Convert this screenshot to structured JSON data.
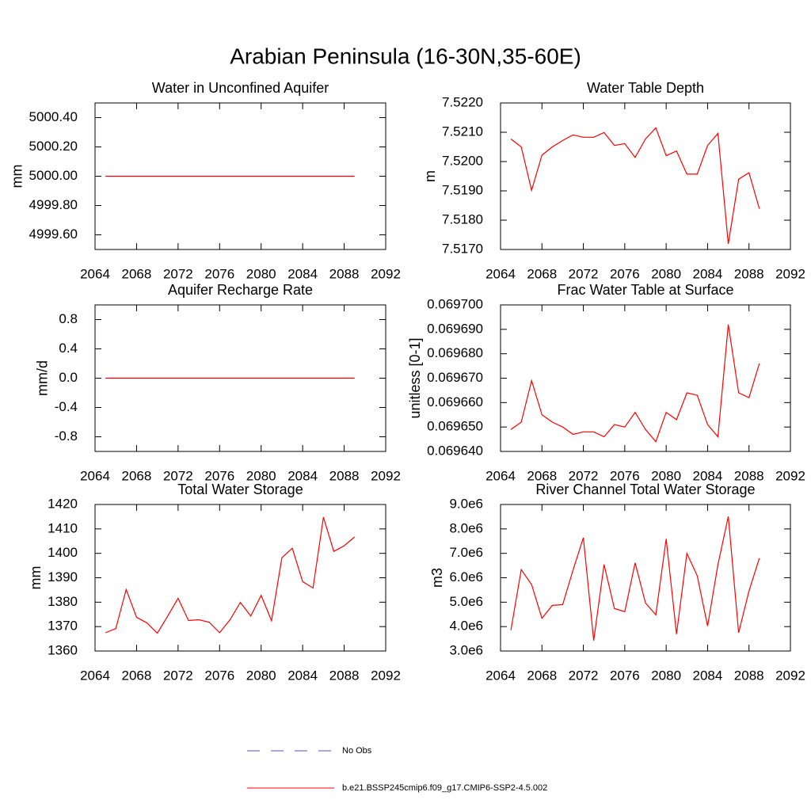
{
  "title": "Arabian Peninsula (16-30N,35-60E)",
  "legend": [
    {
      "name": "No Obs",
      "color": "#5050c8",
      "line_style": "dashed"
    },
    {
      "name": "b.e21.BSSP245cmip6.f09_g17.CMIP6-SSP2-4.5.002",
      "color": "#ff0000",
      "line_style": "solid"
    }
  ],
  "chart_data": [
    {
      "type": "line",
      "title": "Water in Unconfined Aquifer",
      "ylabel": "mm",
      "x": [
        2065,
        2066,
        2067,
        2068,
        2069,
        2070,
        2071,
        2072,
        2073,
        2074,
        2075,
        2076,
        2077,
        2078,
        2079,
        2080,
        2081,
        2082,
        2083,
        2084,
        2085,
        2086,
        2087,
        2088,
        2089
      ],
      "xlim": [
        2064,
        2092
      ],
      "xticks": [
        2064,
        2068,
        2072,
        2076,
        2080,
        2084,
        2088,
        2092
      ],
      "ylim": [
        4999.5,
        5000.5
      ],
      "yticks": [
        {
          "value": 4999.6,
          "label": "4999.60"
        },
        {
          "value": 4999.8,
          "label": "4999.80"
        },
        {
          "value": 5000,
          "label": "5000.00"
        },
        {
          "value": 5000.2,
          "label": "5000.20"
        },
        {
          "value": 5000.4,
          "label": "5000.40"
        }
      ],
      "series": [
        {
          "color": "#ff0000",
          "values": [
            5000,
            5000,
            5000,
            5000,
            5000,
            5000,
            5000,
            5000,
            5000,
            5000,
            5000,
            5000,
            5000,
            5000,
            5000,
            5000,
            5000,
            5000,
            5000,
            5000,
            5000,
            5000,
            5000,
            5000,
            5000
          ]
        }
      ]
    },
    {
      "type": "line",
      "title": "Water Table Depth",
      "ylabel": "m",
      "x": [
        2065,
        2066,
        2067,
        2068,
        2069,
        2070,
        2071,
        2072,
        2073,
        2074,
        2075,
        2076,
        2077,
        2078,
        2079,
        2080,
        2081,
        2082,
        2083,
        2084,
        2085,
        2086,
        2087,
        2088,
        2089
      ],
      "xlim": [
        2064,
        2092
      ],
      "xticks": [
        2064,
        2068,
        2072,
        2076,
        2080,
        2084,
        2088,
        2092
      ],
      "ylim": [
        7.517,
        7.522
      ],
      "yticks": [
        {
          "value": 7.517,
          "label": "7.5170"
        },
        {
          "value": 7.518,
          "label": "7.5180"
        },
        {
          "value": 7.519,
          "label": "7.5190"
        },
        {
          "value": 7.52,
          "label": "7.5200"
        },
        {
          "value": 7.521,
          "label": "7.5210"
        },
        {
          "value": 7.522,
          "label": "7.5220"
        }
      ],
      "series": [
        {
          "color": "#ff0000",
          "values": [
            7.52077,
            7.5205,
            7.51902,
            7.52022,
            7.5205,
            7.52072,
            7.52091,
            7.52083,
            7.52083,
            7.52099,
            7.52055,
            7.52061,
            7.52014,
            7.52077,
            7.52115,
            7.5202,
            7.52036,
            7.51957,
            7.51957,
            7.52055,
            7.52096,
            7.51719,
            7.5194,
            7.51962,
            7.51839
          ]
        }
      ]
    },
    {
      "type": "line",
      "title": "Aquifer Recharge Rate",
      "ylabel": "mm/d",
      "x": [
        2065,
        2066,
        2067,
        2068,
        2069,
        2070,
        2071,
        2072,
        2073,
        2074,
        2075,
        2076,
        2077,
        2078,
        2079,
        2080,
        2081,
        2082,
        2083,
        2084,
        2085,
        2086,
        2087,
        2088,
        2089
      ],
      "xlim": [
        2064,
        2092
      ],
      "xticks": [
        2064,
        2068,
        2072,
        2076,
        2080,
        2084,
        2088,
        2092
      ],
      "ylim": [
        -1,
        1
      ],
      "yticks": [
        -0.8,
        -0.4,
        {
          "value": 0,
          "label": "0.0"
        },
        0.4,
        0.8
      ],
      "series": [
        {
          "color": "#ff0000",
          "values": [
            0,
            0,
            0,
            0,
            0,
            0,
            0,
            0,
            0,
            0,
            0,
            0,
            0,
            0,
            0,
            0,
            0,
            0,
            0,
            0,
            0,
            0,
            0,
            0,
            0
          ]
        }
      ]
    },
    {
      "type": "line",
      "title": "Frac Water Table at Surface",
      "ylabel": "unitless [0-1]",
      "x": [
        2065,
        2066,
        2067,
        2068,
        2069,
        2070,
        2071,
        2072,
        2073,
        2074,
        2075,
        2076,
        2077,
        2078,
        2079,
        2080,
        2081,
        2082,
        2083,
        2084,
        2085,
        2086,
        2087,
        2088,
        2089
      ],
      "xlim": [
        2064,
        2092
      ],
      "xticks": [
        2064,
        2068,
        2072,
        2076,
        2080,
        2084,
        2088,
        2092
      ],
      "ylim": [
        0.06964,
        0.0697
      ],
      "yticks": [
        {
          "value": 0.06964,
          "label": "0.069640"
        },
        {
          "value": 0.06965,
          "label": "0.069650"
        },
        {
          "value": 0.06966,
          "label": "0.069660"
        },
        {
          "value": 0.06967,
          "label": "0.069670"
        },
        {
          "value": 0.06968,
          "label": "0.069680"
        },
        {
          "value": 0.06969,
          "label": "0.069690"
        },
        {
          "value": 0.0697,
          "label": "0.069700"
        }
      ],
      "series": [
        {
          "color": "#ff0000",
          "values": [
            0.069649,
            0.069652,
            0.069669,
            0.069655,
            0.069652,
            0.06965,
            0.069647,
            0.069648,
            0.069648,
            0.069646,
            0.069651,
            0.06965,
            0.069656,
            0.069649,
            0.069644,
            0.069656,
            0.069653,
            0.069664,
            0.069663,
            0.069651,
            0.069646,
            0.069692,
            0.069664,
            0.069662,
            0.069676
          ]
        }
      ]
    },
    {
      "type": "line",
      "title": "Total Water Storage",
      "ylabel": "mm",
      "x": [
        2065,
        2066,
        2067,
        2068,
        2069,
        2070,
        2071,
        2072,
        2073,
        2074,
        2075,
        2076,
        2077,
        2078,
        2079,
        2080,
        2081,
        2082,
        2083,
        2084,
        2085,
        2086,
        2087,
        2088,
        2089
      ],
      "xlim": [
        2064,
        2092
      ],
      "xticks": [
        2064,
        2068,
        2072,
        2076,
        2080,
        2084,
        2088,
        2092
      ],
      "ylim": [
        1360,
        1420
      ],
      "yticks": [
        1360,
        1370,
        1380,
        1390,
        1400,
        1410,
        1420
      ],
      "series": [
        {
          "color": "#ff0000",
          "values": [
            1367.5,
            1369.2,
            1385.2,
            1373.8,
            1371.5,
            1367.3,
            1374.3,
            1381.6,
            1372.5,
            1372.8,
            1371.8,
            1367.5,
            1372.8,
            1379.9,
            1374.3,
            1382.8,
            1372.4,
            1398.2,
            1402.1,
            1388.4,
            1385.8,
            1414.8,
            1400.8,
            1403.1,
            1406.7
          ]
        }
      ]
    },
    {
      "type": "line",
      "title": "River Channel Total Water Storage",
      "ylabel": "m3",
      "x": [
        2065,
        2066,
        2067,
        2068,
        2069,
        2070,
        2071,
        2072,
        2073,
        2074,
        2075,
        2076,
        2077,
        2078,
        2079,
        2080,
        2081,
        2082,
        2083,
        2084,
        2085,
        2086,
        2087,
        2088,
        2089
      ],
      "xlim": [
        2064,
        2092
      ],
      "xticks": [
        2064,
        2068,
        2072,
        2076,
        2080,
        2084,
        2088,
        2092
      ],
      "ylim": [
        3000000,
        9000000
      ],
      "yticks": [
        {
          "value": 3000000,
          "label": "3.0e6"
        },
        {
          "value": 4000000,
          "label": "4.0e6"
        },
        {
          "value": 5000000,
          "label": "5.0e6"
        },
        {
          "value": 6000000,
          "label": "6.0e6"
        },
        {
          "value": 7000000,
          "label": "7.0e6"
        },
        {
          "value": 8000000,
          "label": "8.0e6"
        },
        {
          "value": 9000000,
          "label": "9.0e6"
        }
      ],
      "series": [
        {
          "color": "#ff0000",
          "values": [
            3850000,
            6330000,
            5720000,
            4340000,
            4870000,
            4900000,
            6310000,
            7640000,
            3430000,
            6540000,
            4740000,
            4610000,
            6610000,
            4970000,
            4480000,
            7590000,
            3690000,
            7000000,
            6080000,
            4020000,
            6540000,
            8510000,
            3750000,
            5460000,
            6800000
          ]
        }
      ]
    }
  ]
}
